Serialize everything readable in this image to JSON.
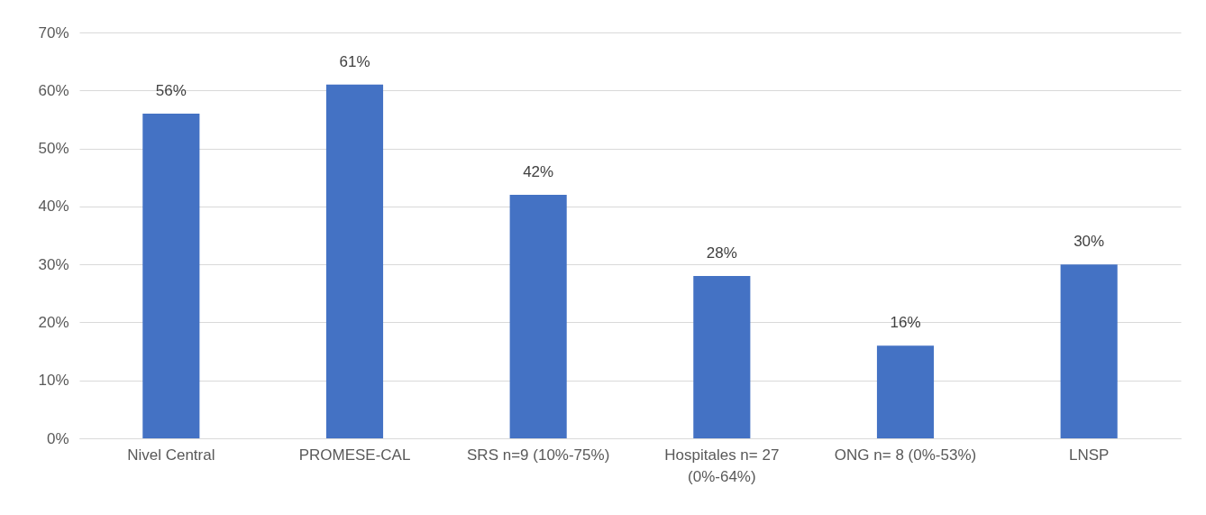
{
  "chart_data": {
    "type": "bar",
    "categories": [
      "Nivel Central",
      "PROMESE-CAL",
      "SRS n=9 (10%-75%)",
      "Hospitales n= 27 (0%-64%)",
      "ONG n= 8 (0%-53%)",
      "LNSP"
    ],
    "values": [
      56,
      61,
      42,
      28,
      16,
      30
    ],
    "value_labels": [
      "56%",
      "61%",
      "42%",
      "28%",
      "16%",
      "30%"
    ],
    "color": "#4472c4",
    "ylim": [
      0,
      70
    ],
    "yticks": [
      {
        "value": 0,
        "label": "0%"
      },
      {
        "value": 10,
        "label": "10%"
      },
      {
        "value": 20,
        "label": "20%"
      },
      {
        "value": 30,
        "label": "30%"
      },
      {
        "value": 40,
        "label": "40%"
      },
      {
        "value": 50,
        "label": "50%"
      },
      {
        "value": 60,
        "label": "60%"
      },
      {
        "value": 70,
        "label": "70%"
      }
    ],
    "grid": "y"
  }
}
